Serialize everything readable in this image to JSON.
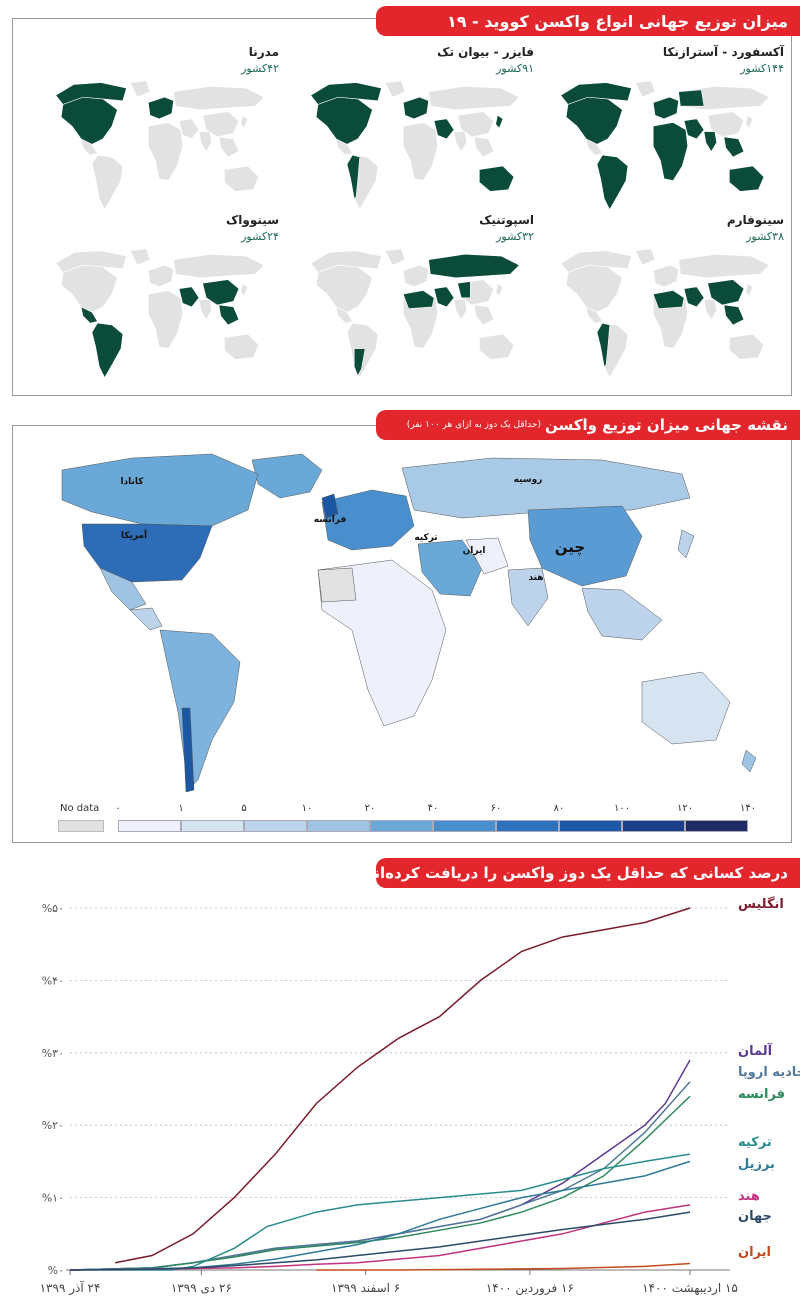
{
  "section1": {
    "title": "میزان توزیع جهانی انواع واکسن کووید - ۱۹",
    "maps": [
      {
        "name": "آکسفورد - آسترازنکا",
        "count": "۱۴۴کشور",
        "highlight": [
          "na",
          "ca",
          "sa",
          "eu",
          "af",
          "me",
          "in",
          "ru_w",
          "se_asia",
          "au"
        ]
      },
      {
        "name": "فایزر - بیوان تک",
        "count": "۹۱کشور",
        "highlight": [
          "na",
          "ca",
          "sa_w",
          "eu",
          "me",
          "jp",
          "au"
        ]
      },
      {
        "name": "مدرنا",
        "count": "۴۲کشور",
        "highlight": [
          "na",
          "ca",
          "eu"
        ]
      },
      {
        "name": "سینوفارم",
        "count": "۳۸کشور",
        "highlight": [
          "cn",
          "sa_w",
          "af_n",
          "me",
          "se_asia"
        ]
      },
      {
        "name": "اسپوتنیک",
        "count": "۳۲کشور",
        "highlight": [
          "ru",
          "sa_s",
          "af_n",
          "me",
          "cn_w"
        ]
      },
      {
        "name": "سینوواک",
        "count": "۲۴کشور",
        "highlight": [
          "cn",
          "sa",
          "mx",
          "se_asia",
          "me"
        ]
      }
    ]
  },
  "section2": {
    "title": "نقشه جهانی میزان توزیع واکسن",
    "subtitle": "(حداقل یک دوز به ازای هر ۱۰۰ نفر)",
    "labels": {
      "canada": "کانادا",
      "usa": "آمریکا",
      "russia": "روسیه",
      "france": "فرانسه",
      "turkey": "ترکیه",
      "iran": "ایران",
      "china": "چین",
      "india": "هند"
    },
    "legend": {
      "nodata": "No data",
      "ticks": [
        "۰",
        "۱",
        "۵",
        "۱۰",
        "۲۰",
        "۴۰",
        "۶۰",
        "۸۰",
        "۱۰۰",
        "۱۲۰",
        "۱۴۰"
      ],
      "colors": [
        "#eef1fb",
        "#d6e4f2",
        "#bcd3eb",
        "#9fc3e3",
        "#6aa8d8",
        "#4a8fcd",
        "#2d72bb",
        "#1c57a3",
        "#1a3e87",
        "#1d2c63"
      ]
    },
    "colors": {
      "nodata": "#e1e1e1",
      "usa": "#2d6db8",
      "canada": "#6aa8d8",
      "russia": "#a9cae6",
      "china": "#5a9bd3",
      "europe": "#4a8fcd",
      "uk": "#1c57a3",
      "africa": "#eef1fb",
      "sa": "#7db3dd",
      "chile": "#1c57a3",
      "india": "#bcd3eb",
      "australia": "#d6e4f2",
      "me": "#6aa8d8",
      "iran": "#eef1fb"
    }
  },
  "section3": {
    "title": "درصد کسانی که حداقل یک دوز واکسن را دریافت کرده‌اند"
  },
  "chart_data": {
    "type": "line",
    "title": "درصد کسانی که حداقل یک دوز واکسن را دریافت کرده‌اند",
    "xlabel": "",
    "ylabel": "",
    "ylim": [
      0,
      50
    ],
    "yticks": [
      0,
      10,
      20,
      30,
      40,
      50
    ],
    "ytick_labels": [
      "%۰",
      "%۱۰",
      "%۲۰",
      "%۳۰",
      "%۴۰",
      "%۵۰"
    ],
    "x_labels": [
      "۲۴ آذر ۱۳۹۹",
      "۲۶ دی ۱۳۹۹",
      "۶ اسفند ۱۳۹۹",
      "۱۶ فروردین ۱۴۰۰",
      "۱۵ اردیبهشت ۱۴۰۰"
    ],
    "x_label_t": [
      0,
      32,
      72,
      112,
      151
    ],
    "series": [
      {
        "name": "انگلیس",
        "color": "#7a1c2b",
        "t": [
          11,
          20,
          30,
          40,
          50,
          60,
          70,
          80,
          90,
          100,
          110,
          120,
          130,
          140,
          151
        ],
        "values": [
          1,
          2,
          5,
          10,
          16,
          23,
          28,
          32,
          35,
          40,
          44,
          46,
          47,
          48,
          50
        ]
      },
      {
        "name": "آلمان",
        "color": "#5b3a93",
        "t": [
          0,
          20,
          30,
          40,
          50,
          60,
          70,
          80,
          90,
          100,
          110,
          120,
          130,
          140,
          145,
          151
        ],
        "values": [
          0,
          0.3,
          1,
          2,
          3,
          3.5,
          4,
          5,
          6,
          7,
          9,
          12,
          16,
          20,
          23,
          29
        ]
      },
      {
        "name": "اتحادیه اروپا",
        "color": "#52789b",
        "t": [
          0,
          20,
          30,
          40,
          50,
          60,
          70,
          80,
          90,
          100,
          110,
          120,
          130,
          140,
          151
        ],
        "values": [
          0,
          0.3,
          1,
          2,
          3,
          3.5,
          4,
          5,
          6,
          7,
          9,
          11,
          14,
          19,
          26
        ]
      },
      {
        "name": "فرانسه",
        "color": "#2e8a5c",
        "t": [
          0,
          20,
          30,
          40,
          50,
          60,
          70,
          80,
          90,
          100,
          110,
          120,
          130,
          140,
          151
        ],
        "values": [
          0,
          0.3,
          1,
          1.8,
          2.8,
          3.3,
          3.8,
          4.5,
          5.5,
          6.5,
          8,
          10,
          13,
          18,
          24
        ]
      },
      {
        "name": "ترکیه",
        "color": "#2a8c8c",
        "t": [
          0,
          25,
          30,
          40,
          48,
          60,
          70,
          80,
          90,
          100,
          110,
          120,
          130,
          140,
          151
        ],
        "values": [
          0,
          0,
          0.5,
          3,
          6,
          8,
          9,
          9.5,
          10,
          10.5,
          11,
          12.5,
          14,
          15,
          16
        ]
      },
      {
        "name": "برزیل",
        "color": "#2f7a97",
        "t": [
          0,
          30,
          40,
          50,
          60,
          70,
          80,
          90,
          100,
          110,
          120,
          130,
          140,
          151
        ],
        "values": [
          0,
          0.3,
          0.8,
          1.5,
          2.5,
          3.5,
          5,
          7,
          8.5,
          10,
          11,
          12,
          13,
          15
        ]
      },
      {
        "name": "هند",
        "color": "#c0337f",
        "t": [
          0,
          30,
          40,
          50,
          60,
          70,
          80,
          90,
          100,
          110,
          120,
          130,
          140,
          151
        ],
        "values": [
          0,
          0.2,
          0.3,
          0.5,
          0.8,
          1,
          1.5,
          2,
          3,
          4,
          5,
          6.5,
          8,
          9
        ]
      },
      {
        "name": "جهان",
        "color": "#2b4a6a",
        "t": [
          0,
          20,
          30,
          40,
          50,
          60,
          70,
          80,
          90,
          100,
          110,
          120,
          130,
          140,
          151
        ],
        "values": [
          0,
          0.1,
          0.3,
          0.6,
          1,
          1.4,
          2,
          2.6,
          3.2,
          4,
          4.8,
          5.6,
          6.3,
          7,
          8
        ]
      },
      {
        "name": "ایران",
        "color": "#c24a1e",
        "t": [
          60,
          80,
          100,
          120,
          140,
          151
        ],
        "values": [
          0,
          0,
          0.1,
          0.2,
          0.5,
          0.9
        ]
      }
    ]
  }
}
